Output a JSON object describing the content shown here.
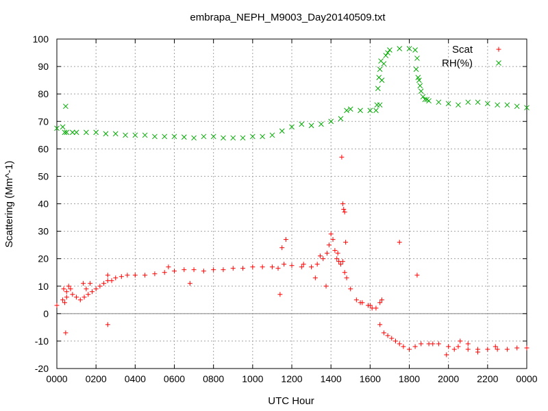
{
  "chart_data": {
    "type": "scatter",
    "title": "embrapa_NEPH_M9003_Day20140509.txt",
    "xlabel": "UTC Hour",
    "ylabel": "Scattering (Mm^-1)",
    "xlim": [
      0,
      24
    ],
    "ylim": [
      -20,
      100
    ],
    "grid": true,
    "legend_position": "top-right",
    "x_ticks": [
      {
        "value": 0,
        "label": "0000"
      },
      {
        "value": 2,
        "label": "0200"
      },
      {
        "value": 4,
        "label": "0400"
      },
      {
        "value": 6,
        "label": "0600"
      },
      {
        "value": 8,
        "label": "0800"
      },
      {
        "value": 10,
        "label": "1000"
      },
      {
        "value": 12,
        "label": "1200"
      },
      {
        "value": 14,
        "label": "1400"
      },
      {
        "value": 16,
        "label": "1600"
      },
      {
        "value": 18,
        "label": "1800"
      },
      {
        "value": 20,
        "label": "2000"
      },
      {
        "value": 22,
        "label": "2200"
      },
      {
        "value": 24,
        "label": "0000"
      }
    ],
    "y_ticks": [
      {
        "value": -20,
        "label": "-20"
      },
      {
        "value": -10,
        "label": "-10"
      },
      {
        "value": 0,
        "label": "0"
      },
      {
        "value": 10,
        "label": "10"
      },
      {
        "value": 20,
        "label": "20"
      },
      {
        "value": 30,
        "label": "30"
      },
      {
        "value": 40,
        "label": "40"
      },
      {
        "value": 50,
        "label": "50"
      },
      {
        "value": 60,
        "label": "60"
      },
      {
        "value": 70,
        "label": "70"
      },
      {
        "value": 80,
        "label": "80"
      },
      {
        "value": 90,
        "label": "90"
      },
      {
        "value": 100,
        "label": "100"
      }
    ],
    "series": [
      {
        "name": "Scat",
        "marker": "plus",
        "color": "#ff0000",
        "x": [
          0.0,
          0.3,
          0.4,
          0.5,
          0.6,
          0.7,
          0.8,
          1.0,
          1.2,
          1.4,
          1.6,
          1.8,
          2.0,
          2.2,
          2.4,
          2.6,
          2.8,
          3.0,
          3.3,
          3.6,
          4.0,
          4.5,
          5.0,
          5.5,
          6.0,
          6.5,
          7.0,
          7.5,
          8.0,
          8.5,
          9.0,
          9.5,
          10.0,
          10.5,
          11.0,
          11.3,
          11.6,
          12.0,
          12.5,
          13.0,
          13.3,
          13.6,
          13.8,
          13.9,
          14.0,
          14.1,
          14.2,
          14.3,
          14.4,
          14.5,
          14.6,
          14.7,
          14.8,
          15.0,
          15.3,
          15.6,
          15.9,
          16.1,
          16.3,
          16.5,
          16.7,
          16.9,
          17.1,
          17.3,
          17.5,
          17.7,
          18.0,
          18.3,
          18.6,
          19.0,
          19.5,
          20.0,
          20.5,
          21.0,
          21.5,
          22.0,
          22.5,
          23.0,
          23.5,
          24.0,
          0.35,
          0.45,
          1.7,
          1.35,
          0.5,
          1.5,
          2.6,
          2.6,
          5.7,
          6.8,
          11.4,
          11.5,
          11.7,
          12.6,
          13.2,
          13.45,
          13.75,
          14.35,
          14.55,
          14.6,
          14.65,
          14.7,
          14.75,
          15.5,
          16.0,
          16.5,
          16.6,
          17.5,
          18.4,
          19.2,
          19.9,
          20.3,
          20.6,
          21.0,
          21.5,
          22.4
        ],
        "y": [
          3,
          5,
          4,
          6,
          10,
          9,
          7,
          6,
          5,
          6,
          7,
          8,
          9,
          10,
          11,
          12,
          12,
          13,
          13.5,
          14,
          14,
          14,
          14.5,
          15,
          15.5,
          16,
          16,
          15.5,
          16,
          16,
          16.5,
          16.5,
          17,
          17,
          17,
          16.5,
          18,
          17.5,
          17,
          17,
          18,
          20,
          22,
          25,
          29,
          27,
          23,
          20,
          19,
          18,
          19,
          15,
          13,
          9,
          5,
          4,
          3,
          2,
          2,
          -4,
          -7,
          -8,
          -9,
          -10,
          -11,
          -12,
          -13,
          -12,
          -11,
          -11,
          -11,
          -12,
          -12,
          -13,
          -13,
          -13,
          -13,
          -13,
          -12.5,
          -12.5,
          9,
          -7,
          11,
          11,
          8,
          9,
          14,
          -4,
          17,
          11,
          7,
          24,
          27,
          18,
          13,
          21,
          10,
          22,
          57,
          40,
          38,
          37,
          26,
          4,
          3,
          4,
          5,
          26,
          14,
          -11,
          -15,
          -13,
          -10,
          -11,
          -14,
          -12
        ]
      },
      {
        "name": "RH(%)",
        "marker": "cross",
        "color": "#00aa00",
        "x": [
          0.0,
          0.3,
          0.4,
          0.5,
          0.8,
          1.0,
          1.5,
          2.0,
          2.5,
          3.0,
          3.5,
          4.0,
          4.5,
          5.0,
          5.5,
          6.0,
          6.5,
          7.0,
          7.5,
          8.0,
          8.5,
          9.0,
          9.5,
          10.0,
          10.5,
          11.0,
          11.5,
          12.0,
          12.5,
          13.0,
          13.5,
          14.0,
          14.5,
          14.8,
          15.0,
          15.5,
          16.0,
          16.3,
          16.5,
          16.6,
          16.7,
          16.8,
          16.9,
          17.0,
          17.5,
          18.0,
          18.3,
          18.4,
          18.5,
          18.6,
          18.7,
          18.8,
          18.9,
          19.0,
          19.5,
          20.0,
          20.5,
          21.0,
          21.5,
          22.0,
          22.5,
          23.0,
          23.5,
          24.0,
          0.45,
          16.35,
          16.4,
          16.45,
          16.5,
          16.55,
          18.35,
          18.45,
          18.55
        ],
        "y": [
          67.5,
          68,
          66,
          66,
          66,
          66,
          66,
          66,
          65.5,
          65.5,
          65,
          65,
          65,
          64.5,
          64.5,
          64.5,
          64.3,
          64,
          64.5,
          64.5,
          64,
          64,
          64,
          64.5,
          64.5,
          65,
          66.5,
          68,
          69,
          68.5,
          69,
          70,
          71,
          74,
          74.5,
          74,
          74,
          74,
          76,
          85,
          91,
          94,
          95,
          96,
          96.5,
          96.5,
          96,
          93,
          85,
          81,
          79,
          78,
          78,
          77.5,
          77,
          76.5,
          76,
          77,
          77,
          76.5,
          76,
          76,
          75.5,
          75,
          75.5,
          76,
          82,
          86,
          89,
          92,
          89,
          86,
          83
        ]
      }
    ]
  }
}
